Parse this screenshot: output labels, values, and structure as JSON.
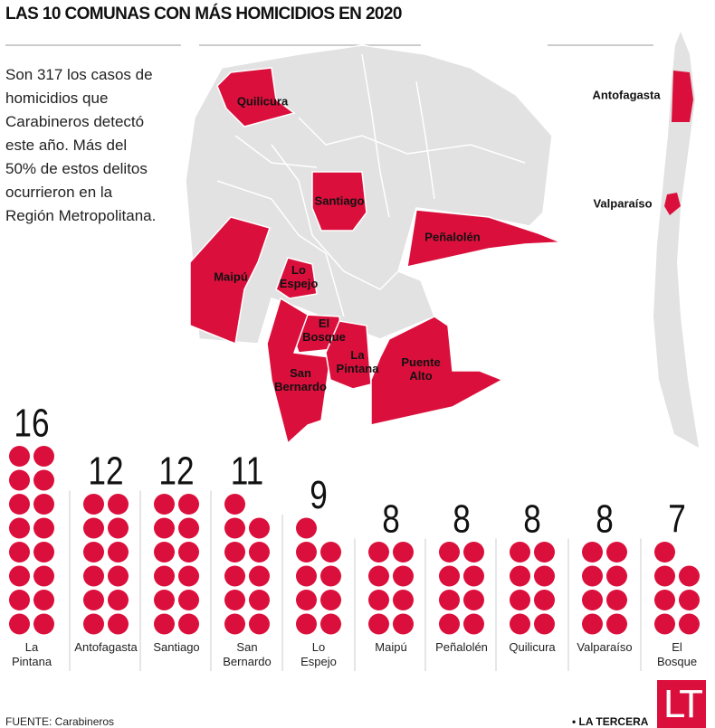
{
  "title": "LAS 10 COMUNAS CON MÁS HOMICIDIOS EN 2020",
  "intro": "Son 317 los casos de homicidios que Carabineros detectó este año. Más del 50% de estos delitos ocurrieron en la Región Metropolitana.",
  "map_labels": [
    "Quilicura",
    "Santiago",
    "Peñalolén",
    "Maipú",
    "Lo Espejo",
    "El Bosque",
    "La Pintana",
    "Puente Alto",
    "San Bernardo",
    "Antofagasta",
    "Valparaíso"
  ],
  "source": "FUENTE: Carabineros",
  "brand": "LA TERCERA",
  "logo": "LT",
  "chart_data": {
    "type": "dot",
    "categories": [
      "La Pintana",
      "Antofagasta",
      "Santiago",
      "San Bernardo",
      "Lo Espejo",
      "Maipú",
      "Peñalolén",
      "Quilicura",
      "Valparaíso",
      "El Bosque"
    ],
    "values": [
      16,
      12,
      12,
      11,
      9,
      8,
      8,
      8,
      8,
      7
    ],
    "color": "#db0f3c"
  }
}
